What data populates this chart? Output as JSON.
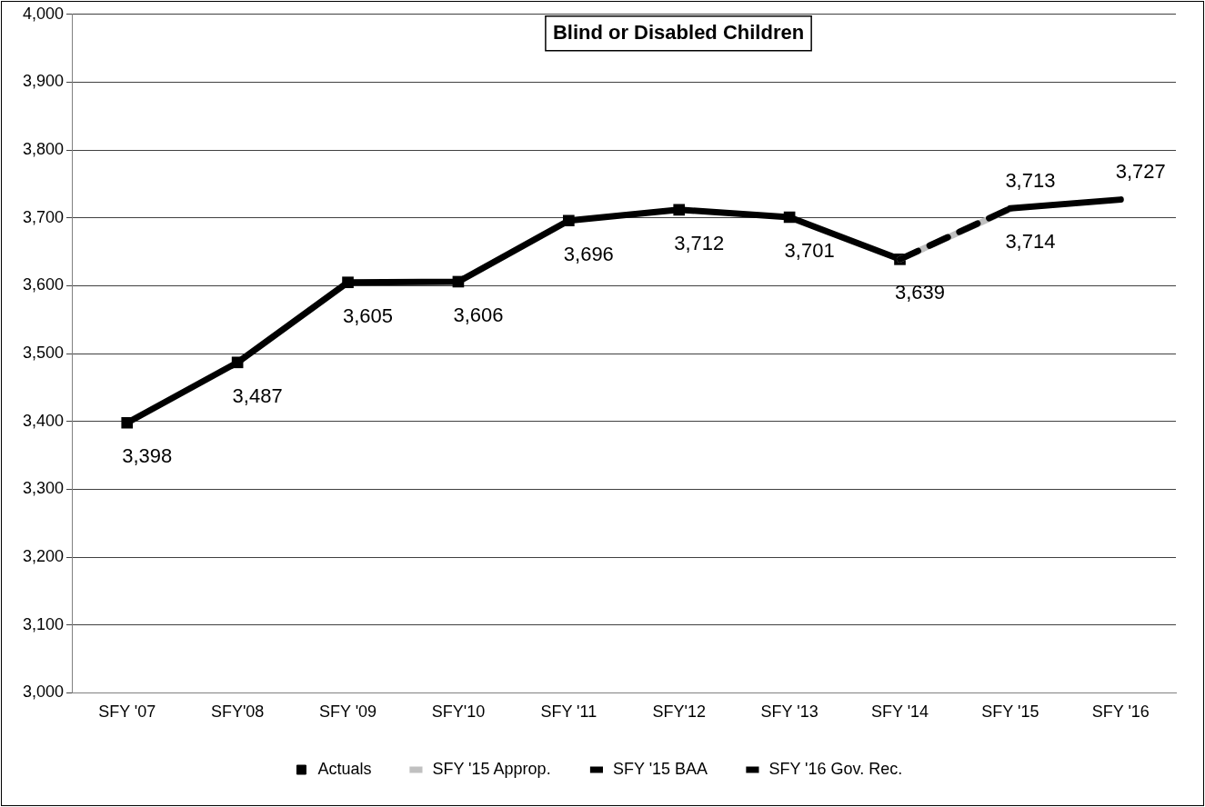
{
  "chart_data": {
    "type": "line",
    "title": "Blind or Disabled Children",
    "categories": [
      "SFY '07",
      "SFY'08",
      "SFY '09",
      "SFY'10",
      "SFY '11",
      "SFY'12",
      "SFY '13",
      "SFY '14",
      "SFY '15",
      "SFY '16"
    ],
    "series": [
      {
        "name": "Actuals",
        "color": "#000000",
        "marker": "square",
        "values": [
          3398,
          3487,
          3605,
          3606,
          3696,
          3712,
          3701,
          3639,
          null,
          null
        ],
        "value_labels": [
          "3,398",
          "3,487",
          "3,605",
          "3,606",
          "3,696",
          "3,712",
          "3,701",
          "3,639",
          null,
          null
        ]
      },
      {
        "name": "SFY '15 Approp.",
        "color": "#c0c0c0",
        "values": [
          null,
          null,
          null,
          null,
          null,
          null,
          null,
          3639,
          3713,
          null
        ],
        "value_labels": [
          null,
          null,
          null,
          null,
          null,
          null,
          null,
          null,
          "3,713",
          null
        ]
      },
      {
        "name": "SFY '15 BAA",
        "color": "#000000",
        "line_style": "dashed",
        "values": [
          null,
          null,
          null,
          null,
          null,
          null,
          null,
          3639,
          3714,
          null
        ],
        "value_labels": [
          null,
          null,
          null,
          null,
          null,
          null,
          null,
          null,
          "3,714",
          null
        ]
      },
      {
        "name": "SFY '16 Gov. Rec.",
        "color": "#000000",
        "values": [
          null,
          null,
          null,
          null,
          null,
          null,
          null,
          null,
          3714,
          3727
        ],
        "value_labels": [
          null,
          null,
          null,
          null,
          null,
          null,
          null,
          null,
          null,
          "3,727"
        ]
      }
    ],
    "ylim": [
      3000,
      4000
    ],
    "yticks": [
      {
        "value": 3000,
        "label": "3,000"
      },
      {
        "value": 3100,
        "label": "3,100"
      },
      {
        "value": 3200,
        "label": "3,200"
      },
      {
        "value": 3300,
        "label": "3,300"
      },
      {
        "value": 3400,
        "label": "3,400"
      },
      {
        "value": 3500,
        "label": "3,500"
      },
      {
        "value": 3600,
        "label": "3,600"
      },
      {
        "value": 3700,
        "label": "3,700"
      },
      {
        "value": 3800,
        "label": "3,800"
      },
      {
        "value": 3900,
        "label": "3,900"
      },
      {
        "value": 4000,
        "label": "4,000"
      }
    ],
    "grid": "y",
    "legend": "bottom"
  }
}
